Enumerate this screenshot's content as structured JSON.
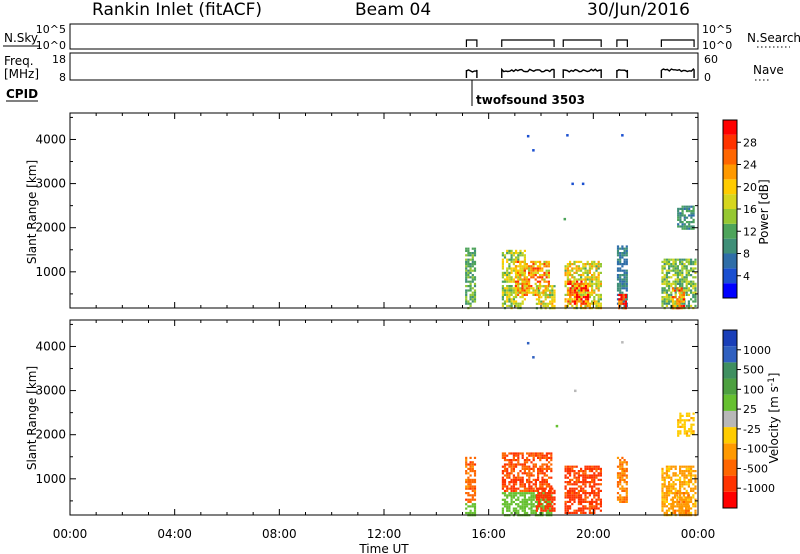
{
  "header": {
    "station": "Rankin Inlet (fitACF)",
    "beam": "Beam 04",
    "date": "30/Jun/2016"
  },
  "params": {
    "nsky_label": "N.Sky",
    "nsky_ticks": [
      "10^5",
      "10^0"
    ],
    "nsearch_label": "N.Search",
    "nsearch_ticks": [
      "10^5",
      "10^0"
    ],
    "freq_label_1": "Freq.",
    "freq_label_2": "[MHz]",
    "freq_ticks": [
      "18",
      "8"
    ],
    "nave_label": "Nave",
    "nave_ticks": [
      "60",
      "0"
    ],
    "cpid_label": "CPID",
    "cpid_text": "twofsound 3503",
    "activity_intervals_h": [
      [
        15.15,
        15.55
      ],
      [
        16.5,
        18.5
      ],
      [
        18.85,
        20.3
      ],
      [
        20.9,
        21.3
      ],
      [
        22.6,
        23.85
      ]
    ]
  },
  "colors": {
    "power_scale": [
      "#0000ff",
      "#1a4fd0",
      "#2f6ea8",
      "#3f8f78",
      "#4da45a",
      "#96c832",
      "#d6d61e",
      "#ffcc00",
      "#ff9900",
      "#ff6600",
      "#ff3300",
      "#ff0000"
    ],
    "velocity_scale": [
      "#1a3fb8",
      "#3060c0",
      "#3f8f60",
      "#4da040",
      "#66c030",
      "#b8b8b8",
      "#ffcc00",
      "#ff9900",
      "#ff6600",
      "#ff3300",
      "#ff0000"
    ]
  },
  "chart_data": [
    {
      "type": "heatmap",
      "name": "power",
      "xlabel": "Time UT",
      "ylabel": "Slant Range [km]",
      "xlim": [
        0,
        24
      ],
      "ylim": [
        180,
        4600
      ],
      "x_ticks": [
        "00:00",
        "04:00",
        "08:00",
        "12:00",
        "16:00",
        "20:00",
        "00:00"
      ],
      "x_tick_values": [
        0,
        4,
        8,
        12,
        16,
        20,
        24
      ],
      "y_ticks": [
        1000,
        2000,
        3000,
        4000
      ],
      "colorbar_label": "Power [dB]",
      "colorbar_ticks": [
        "28",
        "24",
        "20",
        "16",
        "12",
        "8",
        "4"
      ],
      "colorbar_range": [
        0,
        32
      ],
      "regions": [
        {
          "t0": 15.1,
          "t1": 15.5,
          "r0": 180,
          "r1": 1550,
          "value": 12
        },
        {
          "t0": 16.5,
          "t1": 17.4,
          "r0": 180,
          "r1": 1500,
          "value": 16
        },
        {
          "t0": 17.0,
          "t1": 18.3,
          "r0": 500,
          "r1": 1250,
          "value": 22
        },
        {
          "t0": 17.8,
          "t1": 18.5,
          "r0": 180,
          "r1": 700,
          "value": 18
        },
        {
          "t0": 18.9,
          "t1": 20.3,
          "r0": 180,
          "r1": 1250,
          "value": 18
        },
        {
          "t0": 19.0,
          "t1": 19.8,
          "r0": 300,
          "r1": 800,
          "value": 26
        },
        {
          "t0": 20.9,
          "t1": 21.3,
          "r0": 180,
          "r1": 1600,
          "value": 8
        },
        {
          "t0": 20.95,
          "t1": 21.25,
          "r0": 180,
          "r1": 500,
          "value": 30
        },
        {
          "t0": 22.6,
          "t1": 23.9,
          "r0": 180,
          "r1": 1300,
          "value": 14
        },
        {
          "t0": 23.0,
          "t1": 23.5,
          "r0": 200,
          "r1": 650,
          "value": 24
        },
        {
          "t0": 23.2,
          "t1": 23.8,
          "r0": 2000,
          "r1": 2500,
          "value": 10
        }
      ],
      "points": [
        {
          "t": 17.5,
          "r": 4080,
          "value": 4
        },
        {
          "t": 19.0,
          "r": 4100,
          "value": 4
        },
        {
          "t": 21.1,
          "r": 4100,
          "value": 4
        },
        {
          "t": 17.7,
          "r": 3760,
          "value": 4
        },
        {
          "t": 19.2,
          "r": 3000,
          "value": 4
        },
        {
          "t": 19.6,
          "r": 3000,
          "value": 4
        },
        {
          "t": 18.9,
          "r": 2200,
          "value": 12
        }
      ]
    },
    {
      "type": "heatmap",
      "name": "velocity",
      "xlabel": "Time UT",
      "ylabel": "Slant Range [km]",
      "xlim": [
        0,
        24
      ],
      "ylim": [
        180,
        4600
      ],
      "x_ticks": [
        "00:00",
        "04:00",
        "08:00",
        "12:00",
        "16:00",
        "20:00",
        "00:00"
      ],
      "x_tick_values": [
        0,
        4,
        8,
        12,
        16,
        20,
        24
      ],
      "y_ticks": [
        1000,
        2000,
        3000,
        4000
      ],
      "colorbar_label": "Velocity [m s^-1]",
      "colorbar_ticks": [
        "1000",
        "500",
        "100",
        "25",
        "-25",
        "-100",
        "-500",
        "-1000"
      ],
      "colorbar_range": [
        -1250,
        1250
      ],
      "regions": [
        {
          "t0": 15.1,
          "t1": 15.5,
          "r0": 500,
          "r1": 1500,
          "value": -400
        },
        {
          "t0": 15.1,
          "t1": 15.5,
          "r0": 180,
          "r1": 450,
          "value": 60
        },
        {
          "t0": 16.5,
          "t1": 18.4,
          "r0": 750,
          "r1": 1600,
          "value": -500
        },
        {
          "t0": 16.5,
          "t1": 18.4,
          "r0": 180,
          "r1": 700,
          "value": 60
        },
        {
          "t0": 17.8,
          "t1": 18.5,
          "r0": 300,
          "r1": 800,
          "value": -700
        },
        {
          "t0": 18.9,
          "t1": 20.3,
          "r0": 250,
          "r1": 1300,
          "value": -600
        },
        {
          "t0": 20.9,
          "t1": 21.3,
          "r0": 500,
          "r1": 1500,
          "value": -300
        },
        {
          "t0": 22.6,
          "t1": 23.9,
          "r0": 180,
          "r1": 1300,
          "value": -120
        },
        {
          "t0": 23.0,
          "t1": 23.6,
          "r0": 250,
          "r1": 700,
          "value": -250
        },
        {
          "t0": 23.2,
          "t1": 23.8,
          "r0": 2000,
          "r1": 2500,
          "value": -80
        }
      ],
      "points": [
        {
          "t": 17.5,
          "r": 4080,
          "value": 900
        },
        {
          "t": 17.7,
          "r": 3760,
          "value": 900
        },
        {
          "t": 21.1,
          "r": 4100,
          "value": 0
        },
        {
          "t": 19.3,
          "r": 3000,
          "value": 0
        },
        {
          "t": 18.6,
          "r": 2200,
          "value": 60
        }
      ]
    }
  ]
}
